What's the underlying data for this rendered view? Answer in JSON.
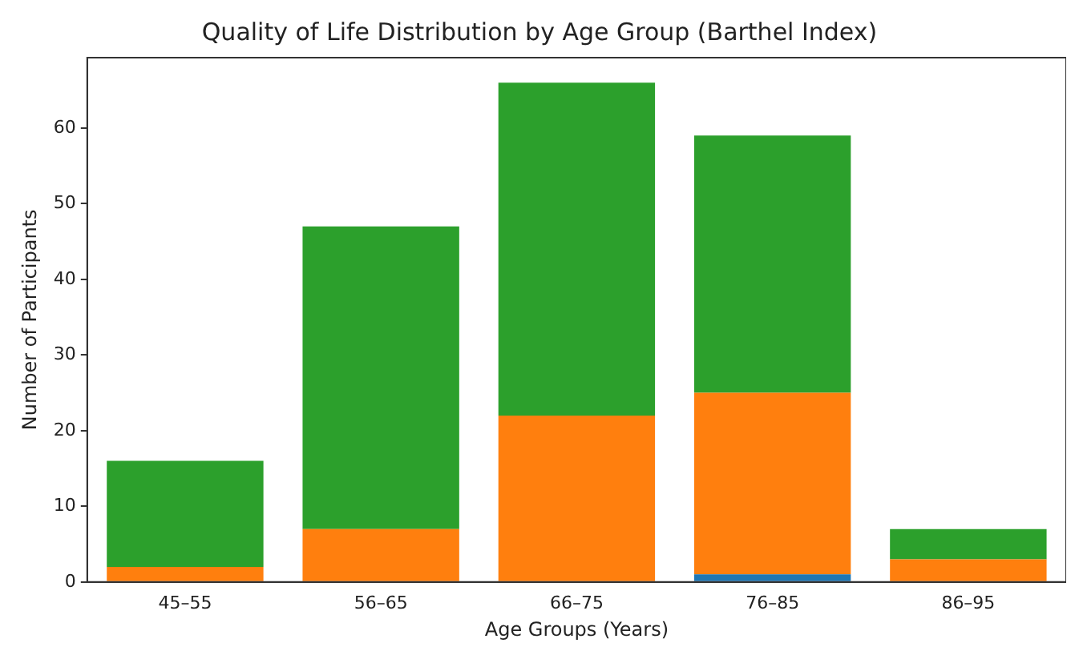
{
  "chart_data": {
    "type": "bar",
    "title": "Quality of Life Distribution by Age Group (Barthel Index)",
    "xlabel": "Age Groups (Years)",
    "ylabel": "Number of Participants",
    "categories": [
      "45–55",
      "56–65",
      "66–75",
      "76–85",
      "86–95"
    ],
    "stacked": true,
    "series": [
      {
        "color": "#1f77b4",
        "values": [
          0,
          0,
          0,
          1,
          0
        ]
      },
      {
        "color": "#ff7f0e",
        "values": [
          2,
          7,
          22,
          24,
          3
        ]
      },
      {
        "color": "#2ca02c",
        "values": [
          14,
          40,
          44,
          34,
          4
        ]
      }
    ],
    "ylim": [
      0,
      69.3
    ],
    "yticks": [
      0,
      10,
      20,
      30,
      40,
      50,
      60
    ],
    "grid": false,
    "legend": false
  }
}
